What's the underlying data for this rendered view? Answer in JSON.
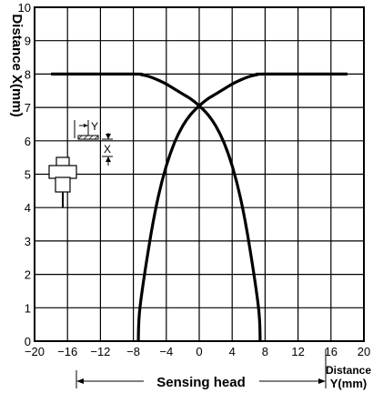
{
  "chart_data": {
    "type": "line",
    "ylabel": "Distance X(mm)",
    "xlabel_line1": "Distance",
    "xlabel_line2": "Y(mm)",
    "bottom_label": "Sensing head",
    "xlim": [
      -20,
      20
    ],
    "ylim": [
      0,
      10
    ],
    "x_ticks": [
      -20,
      -16,
      -12,
      -8,
      -4,
      0,
      4,
      8,
      12,
      16,
      20
    ],
    "x_tick_labels": [
      "−20",
      "−16",
      "−12",
      "−8",
      "−4",
      "0",
      "4",
      "8",
      "12",
      "16",
      "20"
    ],
    "y_ticks": [
      0,
      1,
      2,
      3,
      4,
      5,
      6,
      7,
      8,
      9,
      10
    ],
    "y_tick_labels": [
      "0",
      "1",
      "2",
      "3",
      "4",
      "5",
      "6",
      "7",
      "8",
      "9",
      "10"
    ],
    "grid": true,
    "series": [
      {
        "x": [
          -18,
          -8,
          -7,
          -6,
          -5,
          -4,
          -3,
          -2,
          -1,
          0,
          1,
          2,
          3,
          4,
          5,
          6,
          7.2,
          7.4
        ],
        "y": [
          8,
          8,
          7.98,
          7.92,
          7.82,
          7.7,
          7.55,
          7.4,
          7.25,
          7.05,
          6.8,
          6.45,
          5.95,
          5.25,
          4.3,
          3.0,
          1.0,
          0
        ]
      },
      {
        "x": [
          18,
          8,
          7,
          6,
          5,
          4,
          3,
          2,
          1,
          0,
          -1,
          -2,
          -3,
          -4,
          -5,
          -6,
          -7.2,
          -7.4
        ],
        "y": [
          8,
          8,
          7.98,
          7.92,
          7.82,
          7.7,
          7.55,
          7.4,
          7.25,
          7.05,
          6.8,
          6.45,
          5.95,
          5.25,
          4.3,
          3.0,
          1.0,
          0
        ]
      }
    ],
    "inset": {
      "label_y": "Y",
      "label_x": "X"
    }
  }
}
